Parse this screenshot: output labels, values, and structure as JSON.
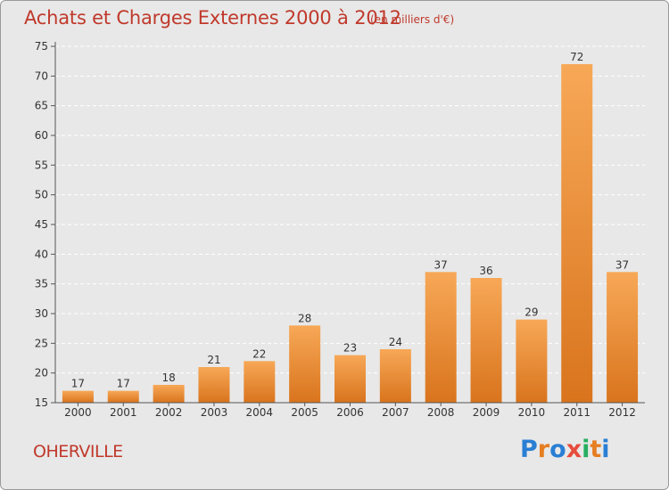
{
  "header": {
    "title": "Achats et Charges Externes 2000 à 2012",
    "subtitle": "(en milliers d'€)"
  },
  "footer": {
    "commune": "OHERVILLE",
    "logo_text": "Proxiti",
    "logo_colors": [
      "#2a7fd4",
      "#e67e22",
      "#2a7fd4",
      "#e74c3c",
      "#27ae60",
      "#e67e22",
      "#2a7fd4"
    ]
  },
  "colors": {
    "bar_top": "#f7a857",
    "bar_bottom": "#d9741d",
    "text": "#c0392b",
    "grid": "#ffffff"
  },
  "chart_data": {
    "type": "bar",
    "title": "Achats et Charges Externes 2000 à 2012",
    "subtitle": "(en milliers d'€)",
    "categories": [
      "2000",
      "2001",
      "2002",
      "2003",
      "2004",
      "2005",
      "2006",
      "2007",
      "2008",
      "2009",
      "2010",
      "2011",
      "2012"
    ],
    "values": [
      17,
      17,
      18,
      21,
      22,
      28,
      23,
      24,
      37,
      36,
      29,
      72,
      37
    ],
    "ylim": [
      15,
      75
    ],
    "yticks": [
      15,
      20,
      25,
      30,
      35,
      40,
      45,
      50,
      55,
      60,
      65,
      70,
      75
    ],
    "grid": "horizontal dashed",
    "xlabel": "",
    "ylabel": ""
  }
}
